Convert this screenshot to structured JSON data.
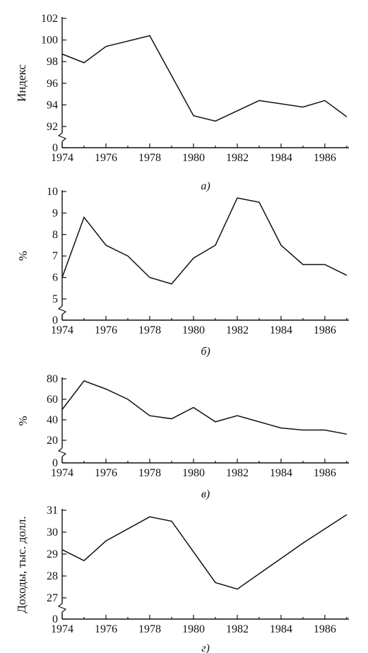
{
  "chart_data": [
    {
      "type": "line",
      "caption": "а)",
      "ylabel": "Индекс",
      "x": [
        1974,
        1975,
        1976,
        1978,
        1980,
        1981,
        1983,
        1985,
        1986,
        1987
      ],
      "series": [
        {
          "values": [
            98.7,
            97.9,
            99.4,
            100.4,
            93.0,
            92.5,
            94.4,
            93.8,
            94.4,
            92.9
          ]
        }
      ],
      "xticks": [
        "1974",
        "1976",
        "1978",
        "1980",
        "1982",
        "1984",
        "1986"
      ],
      "yticks": [
        "0",
        "92",
        "94",
        "96",
        "98",
        "100",
        "102"
      ],
      "ylim": [
        92,
        102
      ],
      "axis_break": true
    },
    {
      "type": "line",
      "caption": "б)",
      "ylabel": "%",
      "x": [
        1974,
        1975,
        1976,
        1977,
        1978,
        1979,
        1980,
        1981,
        1982,
        1983,
        1984,
        1985,
        1986,
        1987
      ],
      "series": [
        {
          "values": [
            6.0,
            8.8,
            7.5,
            7.0,
            6.0,
            5.7,
            6.9,
            7.5,
            9.7,
            9.5,
            7.5,
            6.6,
            6.6,
            6.1
          ]
        }
      ],
      "xticks": [
        "1974",
        "1976",
        "1978",
        "1980",
        "1982",
        "1984",
        "1986"
      ],
      "yticks": [
        "0",
        "5",
        "6",
        "7",
        "8",
        "9",
        "10"
      ],
      "ylim": [
        5,
        10
      ],
      "axis_break": true
    },
    {
      "type": "line",
      "caption": "в)",
      "ylabel": "%",
      "x": [
        1974,
        1975,
        1976,
        1977,
        1978,
        1979,
        1980,
        1981,
        1982,
        1983,
        1984,
        1985,
        1986,
        1987
      ],
      "series": [
        {
          "values": [
            50,
            78,
            70,
            60,
            44,
            41,
            52,
            38,
            44,
            38,
            32,
            30,
            30,
            26
          ]
        }
      ],
      "xticks": [
        "1974",
        "1976",
        "1978",
        "1980",
        "1982",
        "1984",
        "1986"
      ],
      "yticks": [
        "0",
        "20",
        "40",
        "60",
        "80"
      ],
      "ylim": [
        20,
        80
      ],
      "axis_break": true
    },
    {
      "type": "line",
      "caption": "г)",
      "ylabel": "Доходы, тыс. долл.",
      "x": [
        1974,
        1975,
        1976,
        1978,
        1979,
        1981,
        1982,
        1983,
        1984,
        1985,
        1987
      ],
      "series": [
        {
          "values": [
            29.2,
            28.7,
            29.6,
            30.7,
            30.5,
            27.7,
            27.4,
            28.1,
            28.8,
            29.5,
            30.8
          ]
        }
      ],
      "xticks": [
        "1974",
        "1976",
        "1978",
        "1980",
        "1982",
        "1984",
        "1986"
      ],
      "yticks": [
        "0",
        "27",
        "28",
        "29",
        "30",
        "31"
      ],
      "ylim": [
        27,
        31
      ],
      "axis_break": true
    }
  ]
}
